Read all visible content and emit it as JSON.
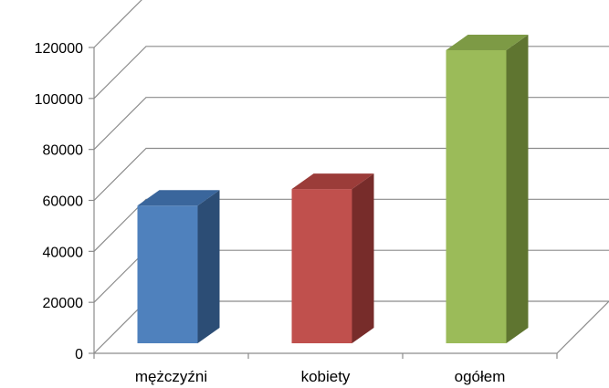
{
  "chart_data": {
    "type": "bar",
    "style": "3d-column",
    "categories": [
      "mężczyźni",
      "kobiety",
      "ogółem"
    ],
    "values": [
      54000,
      60500,
      115000
    ],
    "colors": {
      "front": [
        "#4f81bd",
        "#c0504d",
        "#9bbb59"
      ],
      "side": [
        "#2c4d75",
        "#772c2a",
        "#5f7530"
      ],
      "top": [
        "#3a669c",
        "#9b3c39",
        "#7d9a45"
      ]
    },
    "ylim": [
      0,
      120000
    ],
    "y_ticks": [
      "0",
      "20000",
      "40000",
      "60000",
      "80000",
      "100000",
      "120000"
    ],
    "y_tick_values": [
      0,
      20000,
      40000,
      60000,
      80000,
      100000,
      120000
    ],
    "grid": true,
    "legend": "none",
    "title": "",
    "xlabel": "",
    "ylabel": ""
  }
}
